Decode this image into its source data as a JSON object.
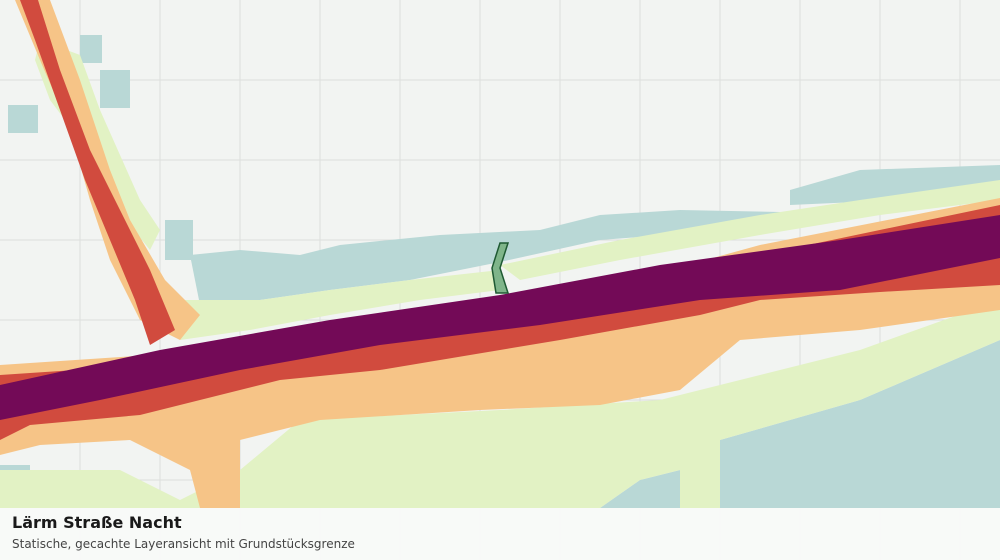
{
  "legend": {
    "title": "Lärm Straße Nacht",
    "subtitle": "Statische, gecachte Layeransicht mit Grundstücksgrenze"
  }
}
